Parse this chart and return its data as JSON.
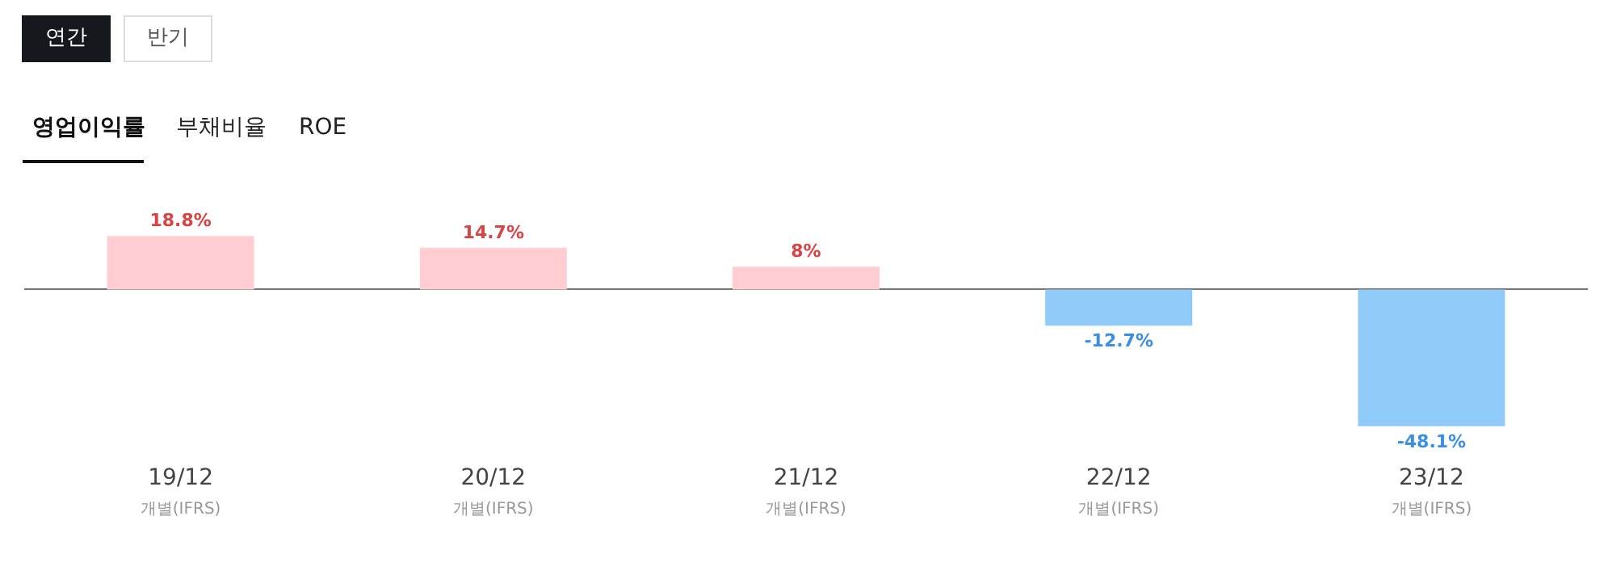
{
  "chart_data": {
    "type": "bar",
    "title": "영업이익률",
    "annotations": [
      "연간",
      "반기",
      "부채비율",
      "ROE"
    ],
    "categories": [
      "19/12\n개별(IFRS)",
      "20/12\n개별(IFRS)",
      "21/12\n개별(IFRS)",
      "22/12\n개별(IFRS)",
      "23/12\n개별(IFRS)"
    ],
    "values": [
      18.8,
      14.7,
      8,
      -12.7,
      -48.1
    ],
    "colors": [
      "#ffcdd2",
      "#ffcdd2",
      "#ffcdd2",
      "#90caf9",
      "#90caf9"
    ],
    "value_labels": [
      "18.8%",
      "14.7%",
      "8%",
      "-12.7%",
      "-48.1%"
    ]
  }
}
